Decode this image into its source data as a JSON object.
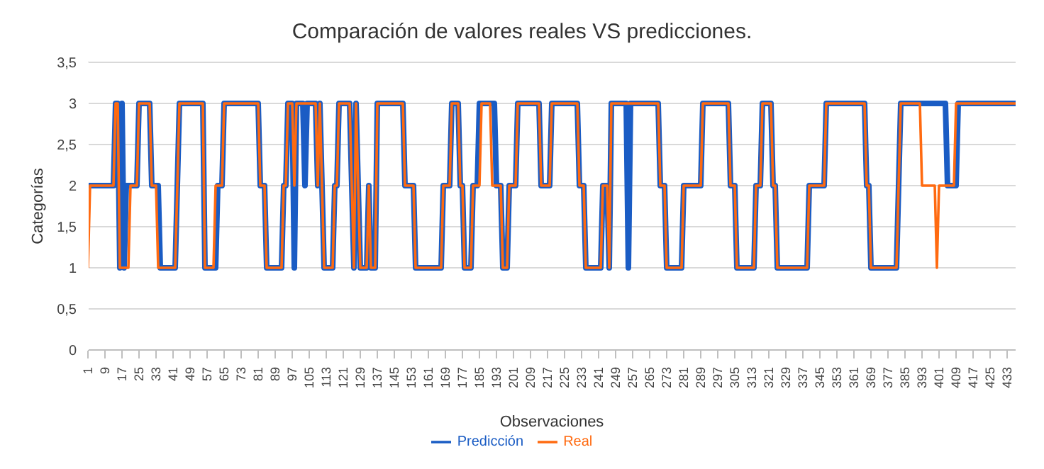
{
  "chart_data": {
    "type": "line",
    "title": "Comparación de valores reales VS predicciones.",
    "xlabel": "Observaciones",
    "ylabel": "Categorías",
    "x": [
      1,
      2,
      3,
      4,
      5,
      6,
      7,
      8,
      9,
      10,
      11,
      12,
      13,
      14,
      15,
      16,
      17,
      18,
      19,
      20,
      21,
      22,
      23,
      24,
      25,
      26,
      27,
      28,
      29,
      30,
      31,
      32,
      33,
      34,
      35,
      36,
      37,
      38,
      39,
      40,
      41,
      42,
      43,
      44,
      45,
      46,
      47,
      48,
      49,
      50,
      51,
      52,
      53,
      54,
      55,
      56,
      57,
      58,
      59,
      60,
      61,
      62,
      63,
      64,
      65,
      66,
      67,
      68,
      69,
      70,
      71,
      72,
      73,
      74,
      75,
      76,
      77,
      78,
      79,
      80,
      81,
      82,
      83,
      84,
      85,
      86,
      87,
      88,
      89,
      90,
      91,
      92,
      93,
      94,
      95,
      96,
      97,
      98,
      99,
      100,
      101,
      102,
      103,
      104,
      105,
      106,
      107,
      108,
      109,
      110,
      111,
      112,
      113,
      114,
      115,
      116,
      117,
      118,
      119,
      120,
      121,
      122,
      123,
      124,
      125,
      126,
      127,
      128,
      129,
      130,
      131,
      132,
      133,
      134,
      135,
      136,
      137,
      138,
      139,
      140,
      141,
      142,
      143,
      144,
      145,
      146,
      147,
      148,
      149,
      150,
      151,
      152,
      153,
      154,
      155,
      156,
      157,
      158,
      159,
      160,
      161,
      162,
      163,
      164,
      165,
      166,
      167,
      168,
      169,
      170,
      171,
      172,
      173,
      174,
      175,
      176,
      177,
      178,
      179,
      180,
      181,
      182,
      183,
      184,
      185,
      186,
      187,
      188,
      189,
      190,
      191,
      192,
      193,
      194,
      195,
      196,
      197,
      198,
      199,
      200,
      201,
      202,
      203,
      204,
      205,
      206,
      207,
      208,
      209,
      210,
      211,
      212,
      213,
      214,
      215,
      216,
      217,
      218,
      219,
      220,
      221,
      222,
      223,
      224,
      225,
      226,
      227,
      228,
      229,
      230,
      231,
      232,
      233,
      234,
      235,
      236,
      237,
      238,
      239,
      240,
      241,
      242,
      243,
      244,
      245,
      246,
      247,
      248,
      249,
      250,
      251,
      252,
      253,
      254,
      255,
      256,
      257,
      258,
      259,
      260,
      261,
      262,
      263,
      264,
      265,
      266,
      267,
      268,
      269,
      270,
      271,
      272,
      273,
      274,
      275,
      276,
      277,
      278,
      279,
      280,
      281,
      282,
      283,
      284,
      285,
      286,
      287,
      288,
      289,
      290,
      291,
      292,
      293,
      294,
      295,
      296,
      297,
      298,
      299,
      300,
      301,
      302,
      303,
      304,
      305,
      306,
      307,
      308,
      309,
      310,
      311,
      312,
      313,
      314,
      315,
      316,
      317,
      318,
      319,
      320,
      321,
      322,
      323,
      324,
      325,
      326,
      327,
      328,
      329,
      330,
      331,
      332,
      333,
      334,
      335,
      336,
      337,
      338,
      339,
      340,
      341,
      342,
      343,
      344,
      345,
      346,
      347,
      348,
      349,
      350,
      351,
      352,
      353,
      354,
      355,
      356,
      357,
      358,
      359,
      360,
      361,
      362,
      363,
      364,
      365,
      366,
      367,
      368,
      369,
      370,
      371,
      372,
      373,
      374,
      375,
      376,
      377,
      378,
      379,
      380,
      381,
      382,
      383,
      384,
      385,
      386,
      387,
      388,
      389,
      390,
      391,
      392,
      393,
      394,
      395,
      396,
      397,
      398,
      399,
      400,
      401,
      402,
      403,
      404,
      405,
      406,
      407,
      408,
      409,
      410,
      411,
      412,
      413,
      414,
      415,
      416,
      417,
      418,
      419,
      420,
      421,
      422,
      423,
      424,
      425,
      426,
      427,
      428,
      429,
      430,
      431,
      432,
      433,
      434,
      435,
      436,
      437
    ],
    "series": [
      {
        "name": "Predicción",
        "color": "#1a5cc4",
        "values": [
          2,
          2,
          2,
          2,
          2,
          2,
          2,
          2,
          2,
          2,
          2,
          2,
          2,
          3,
          3,
          1,
          3,
          1,
          2,
          2,
          2,
          2,
          2,
          2,
          3,
          3,
          3,
          3,
          3,
          3,
          2,
          2,
          2,
          2,
          1,
          1,
          1,
          1,
          1,
          1,
          1,
          1,
          2,
          3,
          3,
          3,
          3,
          3,
          3,
          3,
          3,
          3,
          3,
          3,
          3,
          1,
          1,
          1,
          1,
          1,
          1,
          2,
          2,
          2,
          3,
          3,
          3,
          3,
          3,
          3,
          3,
          3,
          3,
          3,
          3,
          3,
          3,
          3,
          3,
          3,
          3,
          2,
          2,
          2,
          1,
          1,
          1,
          1,
          1,
          1,
          1,
          1,
          2,
          2,
          3,
          3,
          3,
          1,
          3,
          3,
          3,
          3,
          2,
          3,
          3,
          3,
          3,
          3,
          2,
          3,
          2,
          1,
          1,
          1,
          1,
          1,
          2,
          2,
          3,
          3,
          3,
          3,
          3,
          3,
          2,
          1,
          3,
          2,
          1,
          1,
          1,
          1,
          2,
          1,
          1,
          1,
          3,
          3,
          3,
          3,
          3,
          3,
          3,
          3,
          3,
          3,
          3,
          3,
          3,
          2,
          2,
          2,
          2,
          2,
          1,
          1,
          1,
          1,
          1,
          1,
          1,
          1,
          1,
          1,
          1,
          1,
          1,
          2,
          2,
          2,
          2,
          3,
          3,
          3,
          3,
          2,
          2,
          1,
          1,
          1,
          1,
          2,
          2,
          2,
          3,
          3,
          3,
          3,
          3,
          3,
          3,
          3,
          2,
          2,
          2,
          1,
          1,
          1,
          2,
          2,
          2,
          2,
          3,
          3,
          3,
          3,
          3,
          3,
          3,
          3,
          3,
          3,
          3,
          2,
          2,
          2,
          2,
          2,
          3,
          3,
          3,
          3,
          3,
          3,
          3,
          3,
          3,
          3,
          3,
          3,
          3,
          2,
          2,
          2,
          1,
          1,
          1,
          1,
          1,
          1,
          1,
          1,
          2,
          2,
          2,
          1,
          3,
          3,
          3,
          3,
          3,
          3,
          3,
          3,
          1,
          3,
          3,
          3,
          3,
          3,
          3,
          3,
          3,
          3,
          3,
          3,
          3,
          3,
          3,
          2,
          2,
          2,
          1,
          1,
          1,
          1,
          1,
          1,
          1,
          1,
          2,
          2,
          2,
          2,
          2,
          2,
          2,
          2,
          2,
          3,
          3,
          3,
          3,
          3,
          3,
          3,
          3,
          3,
          3,
          3,
          3,
          3,
          2,
          2,
          2,
          1,
          1,
          1,
          1,
          1,
          1,
          1,
          1,
          1,
          2,
          2,
          2,
          3,
          3,
          3,
          3,
          3,
          2,
          2,
          1,
          1,
          1,
          1,
          1,
          1,
          1,
          1,
          1,
          1,
          1,
          1,
          1,
          1,
          1,
          2,
          2,
          2,
          2,
          2,
          2,
          2,
          2,
          3,
          3,
          3,
          3,
          3,
          3,
          3,
          3,
          3,
          3,
          3,
          3,
          3,
          3,
          3,
          3,
          3,
          3,
          3,
          2,
          2,
          1,
          1,
          1,
          1,
          1,
          1,
          1,
          1,
          1,
          1,
          1,
          1,
          1,
          2,
          3,
          3,
          3,
          3,
          3,
          3,
          3,
          3,
          3,
          3,
          3,
          3,
          3,
          3,
          3,
          3,
          3,
          3,
          3,
          3,
          3,
          3,
          2,
          2,
          2,
          2,
          2,
          3,
          3,
          3,
          3,
          3,
          3,
          3,
          3,
          3,
          3,
          3,
          3,
          3,
          3,
          3,
          3,
          3,
          3,
          3,
          3,
          3,
          3,
          3,
          3,
          3,
          3,
          3,
          3
        ]
      },
      {
        "name": "Real",
        "color": "#ff6a10",
        "values": [
          1,
          2,
          2,
          2,
          2,
          2,
          2,
          2,
          2,
          2,
          2,
          2,
          2,
          3,
          3,
          1,
          1,
          1,
          1,
          1,
          2,
          2,
          2,
          2,
          3,
          3,
          3,
          3,
          3,
          3,
          2,
          2,
          2,
          1,
          1,
          1,
          1,
          1,
          1,
          1,
          1,
          1,
          2,
          3,
          3,
          3,
          3,
          3,
          3,
          3,
          3,
          3,
          3,
          3,
          3,
          1,
          1,
          1,
          1,
          1,
          2,
          2,
          2,
          2,
          3,
          3,
          3,
          3,
          3,
          3,
          3,
          3,
          3,
          3,
          3,
          3,
          3,
          3,
          3,
          3,
          3,
          2,
          2,
          2,
          1,
          1,
          1,
          1,
          1,
          1,
          1,
          1,
          2,
          2,
          3,
          3,
          3,
          2,
          3,
          3,
          3,
          3,
          3,
          3,
          3,
          3,
          3,
          3,
          2,
          3,
          2,
          1,
          1,
          1,
          1,
          1,
          2,
          2,
          3,
          3,
          3,
          3,
          3,
          3,
          2,
          1,
          3,
          2,
          1,
          1,
          1,
          1,
          2,
          1,
          1,
          1,
          3,
          3,
          3,
          3,
          3,
          3,
          3,
          3,
          3,
          3,
          3,
          3,
          3,
          2,
          2,
          2,
          2,
          2,
          1,
          1,
          1,
          1,
          1,
          1,
          1,
          1,
          1,
          1,
          1,
          1,
          1,
          2,
          2,
          2,
          2,
          3,
          3,
          3,
          3,
          2,
          2,
          1,
          1,
          1,
          1,
          2,
          2,
          2,
          2,
          3,
          3,
          3,
          3,
          3,
          2,
          2,
          2,
          2,
          2,
          1,
          1,
          1,
          2,
          2,
          2,
          2,
          3,
          3,
          3,
          3,
          3,
          3,
          3,
          3,
          3,
          3,
          3,
          2,
          2,
          2,
          2,
          2,
          3,
          3,
          3,
          3,
          3,
          3,
          3,
          3,
          3,
          3,
          3,
          3,
          3,
          2,
          2,
          2,
          1,
          1,
          1,
          1,
          1,
          1,
          1,
          1,
          2,
          2,
          2,
          1,
          3,
          3,
          3,
          3,
          3,
          3,
          3,
          3,
          3,
          3,
          3,
          3,
          3,
          3,
          3,
          3,
          3,
          3,
          3,
          3,
          3,
          3,
          3,
          2,
          2,
          2,
          1,
          1,
          1,
          1,
          1,
          1,
          1,
          1,
          2,
          2,
          2,
          2,
          2,
          2,
          2,
          2,
          2,
          3,
          3,
          3,
          3,
          3,
          3,
          3,
          3,
          3,
          3,
          3,
          3,
          3,
          2,
          2,
          2,
          1,
          1,
          1,
          1,
          1,
          1,
          1,
          1,
          1,
          2,
          2,
          2,
          3,
          3,
          3,
          3,
          3,
          2,
          2,
          1,
          1,
          1,
          1,
          1,
          1,
          1,
          1,
          1,
          1,
          1,
          1,
          1,
          1,
          1,
          2,
          2,
          2,
          2,
          2,
          2,
          2,
          2,
          3,
          3,
          3,
          3,
          3,
          3,
          3,
          3,
          3,
          3,
          3,
          3,
          3,
          3,
          3,
          3,
          3,
          3,
          3,
          2,
          2,
          1,
          1,
          1,
          1,
          1,
          1,
          1,
          1,
          1,
          1,
          1,
          1,
          1,
          2,
          3,
          3,
          3,
          3,
          3,
          3,
          3,
          3,
          3,
          3,
          2,
          2,
          2,
          2,
          2,
          2,
          2,
          1,
          2,
          2,
          2,
          2,
          2,
          2,
          2,
          2,
          3,
          3,
          3,
          3,
          3,
          3,
          3,
          3,
          3,
          3,
          3,
          3,
          3,
          3,
          3,
          3,
          3,
          3,
          3,
          3,
          3,
          3,
          3,
          3,
          3,
          3,
          3,
          3,
          3
        ]
      }
    ],
    "xlim": [
      1,
      437
    ],
    "xticks": [
      1,
      9,
      17,
      25,
      33,
      41,
      49,
      57,
      65,
      73,
      81,
      89,
      97,
      105,
      113,
      121,
      129,
      137,
      145,
      153,
      161,
      169,
      177,
      185,
      193,
      201,
      209,
      217,
      225,
      233,
      241,
      249,
      257,
      265,
      273,
      281,
      289,
      297,
      305,
      313,
      321,
      329,
      337,
      345,
      353,
      361,
      369,
      377,
      385,
      393,
      401,
      409,
      417,
      425,
      433
    ],
    "ylim": [
      0,
      3.5
    ],
    "yticks": [
      0,
      {
        "value": 0.5,
        "label": "0,5"
      },
      1,
      {
        "value": 1.5,
        "label": "1,5"
      },
      2,
      {
        "value": 2.5,
        "label": "2,5"
      },
      3,
      {
        "value": 3.5,
        "label": "3,5"
      }
    ],
    "grid": "y",
    "legend": "bottom",
    "marker": "none",
    "line_style": "solid"
  }
}
